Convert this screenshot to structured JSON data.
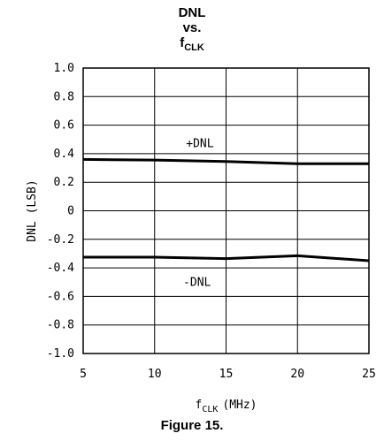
{
  "title": {
    "line1": "DNL",
    "line2": "vs.",
    "line3_main": "f",
    "line3_sub": "CLK"
  },
  "caption": "Figure 15.",
  "chart_data": {
    "type": "line",
    "xlabel_main": "f",
    "xlabel_sub": "CLK",
    "xlabel_unit": "(MHz)",
    "ylabel": "DNL (LSB)",
    "xlim": [
      5,
      25
    ],
    "ylim": [
      -1.0,
      1.0
    ],
    "xticks": [
      "5",
      "10",
      "15",
      "20",
      "25"
    ],
    "yticks": [
      "1.0",
      "0.8",
      "0.6",
      "0.4",
      "0.2",
      "0",
      "-0.2",
      "-0.4",
      "-0.6",
      "-0.8",
      "-1.0"
    ],
    "grid": true,
    "series": [
      {
        "name": "+DNL",
        "x": [
          5,
          10,
          15,
          20,
          25
        ],
        "y": [
          0.36,
          0.355,
          0.345,
          0.33,
          0.33
        ]
      },
      {
        "name": "-DNL",
        "x": [
          5,
          10,
          15,
          20,
          25
        ],
        "y": [
          -0.325,
          -0.325,
          -0.335,
          -0.315,
          -0.35
        ]
      }
    ],
    "annotations": [
      {
        "text": "+DNL",
        "x": 12.2,
        "y": 0.47
      },
      {
        "text": "-DNL",
        "x": 12.0,
        "y": -0.5
      }
    ]
  }
}
